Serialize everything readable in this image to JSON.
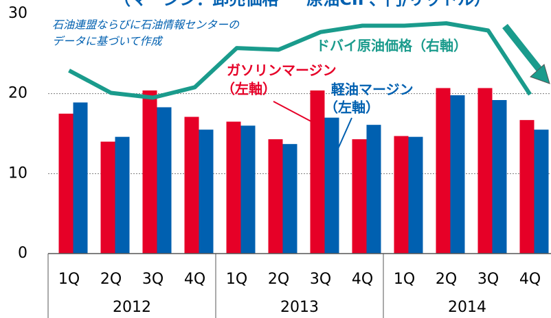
{
  "chart_data": {
    "type": "bar",
    "title": "（マージン：卸売価格 － 原油CIF、円/リットル）",
    "note": [
      "石油連盟ならびに石油情報センターの",
      "データに基づいて作成"
    ],
    "categories": [
      "1Q",
      "2Q",
      "3Q",
      "4Q",
      "1Q",
      "2Q",
      "3Q",
      "4Q",
      "1Q",
      "2Q",
      "3Q",
      "4Q"
    ],
    "groups": [
      "2012",
      "2013",
      "2014"
    ],
    "series": [
      {
        "name": "ガソリンマージン",
        "sublabel": "（左軸）",
        "color": "#e60027",
        "values": [
          17.5,
          14.0,
          20.4,
          17.1,
          16.5,
          14.3,
          20.4,
          14.3,
          14.7,
          20.7,
          20.7,
          16.7
        ]
      },
      {
        "name": "軽油マージン",
        "sublabel": "（左軸）",
        "color": "#0060b0",
        "values": [
          18.9,
          14.6,
          18.3,
          15.5,
          16.0,
          13.7,
          17.0,
          16.1,
          14.6,
          19.8,
          19.2,
          15.5
        ]
      },
      {
        "name": "ドバイ原油価格（右軸）",
        "color": "#1a9b8c",
        "type": "line",
        "axis": "y2",
        "values": [
          22.9,
          20.1,
          19.5,
          20.8,
          25.7,
          25.5,
          27.7,
          28.5,
          28.5,
          28.8,
          27.9,
          19.9
        ]
      }
    ],
    "ylim": [
      0,
      30
    ],
    "yticks": [
      0,
      10,
      20,
      30
    ],
    "y2lim": [
      0,
      30
    ],
    "grid": true
  }
}
